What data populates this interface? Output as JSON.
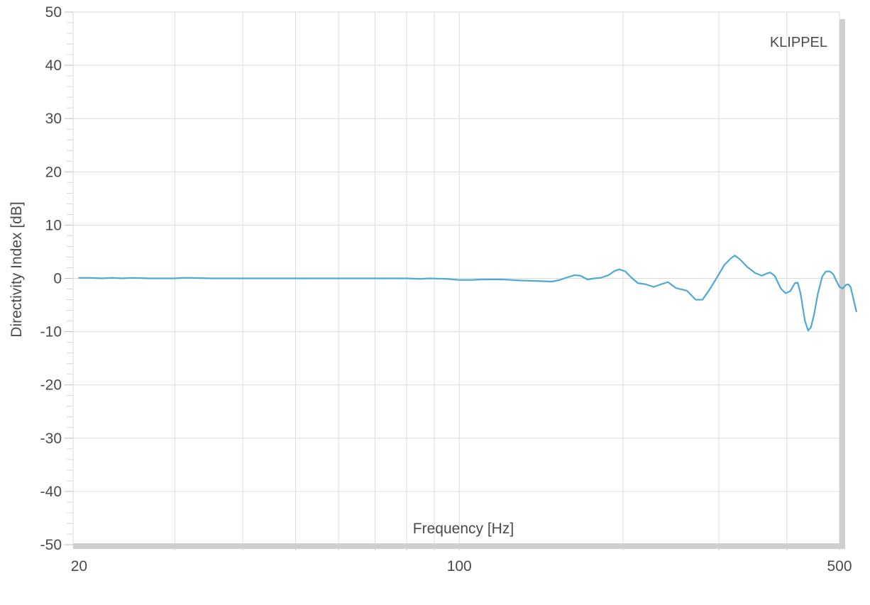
{
  "chart_data": {
    "type": "line",
    "watermark": "KLIPPEL",
    "xlabel": "Frequency [Hz]",
    "ylabel": "Directivity Index [dB]",
    "x_scale": "log",
    "xlim": [
      19.5,
      500
    ],
    "ylim": [
      -50,
      50
    ],
    "x_tick_labels": [
      {
        "value": 20,
        "label": "20"
      },
      {
        "value": 100,
        "label": "100"
      },
      {
        "value": 500,
        "label": "500"
      }
    ],
    "x_gridlines": [
      30,
      40,
      50,
      60,
      70,
      80,
      90,
      100,
      200,
      300,
      400,
      500
    ],
    "y_ticks": [
      {
        "value": 50,
        "label": "50"
      },
      {
        "value": 40,
        "label": "40"
      },
      {
        "value": 30,
        "label": "30"
      },
      {
        "value": 20,
        "label": "20"
      },
      {
        "value": 10,
        "label": "10"
      },
      {
        "value": 0,
        "label": "0"
      },
      {
        "value": -10,
        "label": "-10"
      },
      {
        "value": -20,
        "label": "-20"
      },
      {
        "value": -30,
        "label": "-30"
      },
      {
        "value": -40,
        "label": "-40"
      },
      {
        "value": -50,
        "label": "-50"
      }
    ],
    "grid": true,
    "colors": {
      "series": "#4ea9d8",
      "grid": "#dcdcdc",
      "frame": "#cfcfcf"
    },
    "series": [
      {
        "name": "",
        "points": [
          [
            20,
            0.1
          ],
          [
            21,
            0.1
          ],
          [
            22,
            0.0
          ],
          [
            23,
            0.1
          ],
          [
            24,
            0.0
          ],
          [
            25,
            0.1
          ],
          [
            27,
            0.0
          ],
          [
            30,
            0.0
          ],
          [
            31,
            0.1
          ],
          [
            32,
            0.1
          ],
          [
            35,
            0.0
          ],
          [
            40,
            0.0
          ],
          [
            50,
            0.0
          ],
          [
            60,
            0.0
          ],
          [
            70,
            0.0
          ],
          [
            80,
            0.0
          ],
          [
            85,
            -0.1
          ],
          [
            88,
            0.0
          ],
          [
            95,
            -0.1
          ],
          [
            100,
            -0.3
          ],
          [
            105,
            -0.3
          ],
          [
            110,
            -0.2
          ],
          [
            120,
            -0.2
          ],
          [
            130,
            -0.4
          ],
          [
            140,
            -0.5
          ],
          [
            148,
            -0.6
          ],
          [
            153,
            -0.3
          ],
          [
            158,
            0.2
          ],
          [
            163,
            0.6
          ],
          [
            167,
            0.5
          ],
          [
            172,
            -0.2
          ],
          [
            177,
            0.0
          ],
          [
            182,
            0.1
          ],
          [
            188,
            0.6
          ],
          [
            193,
            1.4
          ],
          [
            197,
            1.7
          ],
          [
            202,
            1.3
          ],
          [
            207,
            0.2
          ],
          [
            213,
            -0.9
          ],
          [
            220,
            -1.1
          ],
          [
            228,
            -1.6
          ],
          [
            235,
            -1.1
          ],
          [
            242,
            -0.7
          ],
          [
            250,
            -1.8
          ],
          [
            262,
            -2.3
          ],
          [
            272,
            -4.0
          ],
          [
            280,
            -4.0
          ],
          [
            288,
            -2.2
          ],
          [
            297,
            0.0
          ],
          [
            307,
            2.5
          ],
          [
            316,
            3.8
          ],
          [
            321,
            4.3
          ],
          [
            328,
            3.6
          ],
          [
            338,
            2.2
          ],
          [
            350,
            1.0
          ],
          [
            360,
            0.5
          ],
          [
            367,
            0.9
          ],
          [
            373,
            1.1
          ],
          [
            380,
            0.5
          ],
          [
            390,
            -1.9
          ],
          [
            398,
            -2.8
          ],
          [
            406,
            -2.4
          ],
          [
            414,
            -0.9
          ],
          [
            419,
            -0.8
          ],
          [
            424,
            -2.8
          ],
          [
            432,
            -8.0
          ],
          [
            438,
            -9.8
          ],
          [
            443,
            -9.2
          ],
          [
            449,
            -6.8
          ],
          [
            456,
            -3.0
          ],
          [
            465,
            0.4
          ],
          [
            472,
            1.3
          ],
          [
            480,
            1.3
          ],
          [
            487,
            0.8
          ],
          [
            493,
            -0.4
          ],
          [
            500,
            -1.6
          ],
          [
            507,
            -1.9
          ],
          [
            514,
            -1.2
          ],
          [
            519,
            -1.1
          ],
          [
            524,
            -1.6
          ],
          [
            530,
            -3.7
          ],
          [
            537,
            -6.2
          ]
        ]
      }
    ]
  }
}
